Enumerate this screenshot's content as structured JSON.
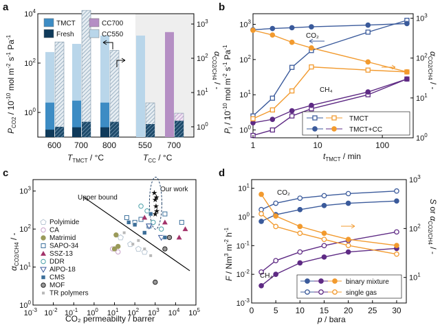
{
  "chart_data": [
    {
      "panel": "a",
      "type": "bar",
      "xlabel_left": "T_TMCT / °C",
      "xlabel_right": "T_CC / °C",
      "ylabel_left": "P_CO2 / 10^-10 mol m^-2 s^-1 Pa^-1",
      "ylabel_right": "α_CO2/CH4 / -",
      "y_left_scale": "log",
      "y_left_lim": [
        0.1,
        10000
      ],
      "y_left_ticks": [
        "10^0",
        "10^2",
        "10^4"
      ],
      "y_right_scale": "log",
      "y_right_lim": [
        0.5,
        2000
      ],
      "y_right_ticks": [
        "10^0",
        "10^1",
        "10^2",
        "10^3"
      ],
      "categories": [
        "600",
        "700",
        "800",
        "550",
        "700"
      ],
      "right_region_shaded": true,
      "legend": [
        "TMCT",
        "Fresh",
        "CC700",
        "CC550"
      ],
      "colors": {
        "TMCT": "#3d8cc4",
        "Fresh": "#0f3a5a",
        "CC700": "#b58fc4",
        "CC550": "#b9d6ea",
        "shaded": "#eeeeee"
      },
      "series": [
        {
          "name": "TMCT",
          "values": [
            2.5,
            3,
            2.5,
            null,
            null
          ]
        },
        {
          "name": "Fresh",
          "values": [
            0.2,
            0.25,
            0.25,
            null,
            null
          ]
        },
        {
          "name": "CC550",
          "values": [
            280,
            600,
            1300,
            1300,
            null
          ]
        },
        {
          "name": "CC700",
          "values": [
            null,
            null,
            null,
            null,
            1800
          ]
        }
      ],
      "selectivity_bars": [
        300,
        2500,
        170,
        5,
        2.5
      ],
      "fresh_selectivity_bars": [
        1.0,
        1.4,
        1.4,
        1.2,
        1.5
      ]
    },
    {
      "panel": "b",
      "type": "line",
      "xlabel": "t_TMCT / min",
      "ylabel_left": "P_i / 10^-10 mol m^-2 s^-1 Pa^-1",
      "ylabel_right": "α_CO2/CH4 / -",
      "x_scale": "log",
      "xlim": [
        1,
        300
      ],
      "x_ticks": [
        "1",
        "10",
        "100"
      ],
      "y_left_scale": "log",
      "y_left_lim": [
        0.6,
        2000
      ],
      "y_left_ticks": [
        "10^0",
        "10^1",
        "10^2",
        "10^3"
      ],
      "y_right_scale": "log",
      "y_right_lim": [
        1,
        1300
      ],
      "y_right_ticks": [
        "10^0",
        "10^1",
        "10^2",
        "10^3"
      ],
      "annotations": [
        "CO₂",
        "CH₄"
      ],
      "legend": [
        "TMCT",
        "TMCT+CC"
      ],
      "colors": {
        "blue": "#3a5a9b",
        "orange": "#f29a2e",
        "purple": "#5e2a84"
      },
      "series": [
        {
          "name": "TMCT",
          "gas": "CO2",
          "x": [
            1,
            2,
            4,
            8,
            60,
            240
          ],
          "y": [
            2.5,
            8,
            60,
            180,
            600,
            1300
          ]
        },
        {
          "name": "TMCT+CC",
          "gas": "CO2",
          "x": [
            1,
            2,
            4,
            8,
            60,
            240
          ],
          "y": [
            700,
            760,
            800,
            850,
            950,
            1050
          ]
        },
        {
          "name": "TMCT",
          "gas": "CH4",
          "x": [
            1,
            2,
            4,
            8,
            60,
            240
          ],
          "y": [
            0.7,
            1.0,
            2.5,
            4,
            10,
            28
          ]
        },
        {
          "name": "TMCT+CC",
          "gas": "CH4",
          "x": [
            1,
            2,
            4,
            8,
            60,
            240
          ],
          "y": [
            1.6,
            2.0,
            3.5,
            5,
            12,
            28
          ]
        },
        {
          "name": "TMCT",
          "quantity": "selectivity",
          "x": [
            1,
            2,
            4,
            8,
            60,
            240
          ],
          "y": [
            3,
            5,
            15,
            60,
            50,
            45
          ]
        },
        {
          "name": "TMCT+CC",
          "quantity": "selectivity",
          "x": [
            1,
            2,
            4,
            8,
            60,
            240
          ],
          "y": [
            500,
            380,
            250,
            180,
            80,
            45
          ]
        }
      ]
    },
    {
      "panel": "c",
      "type": "scatter",
      "xlabel": "CO₂ permeabilty / barrer",
      "ylabel": "α_CO2/CH4 / -",
      "x_scale": "log",
      "xlim": [
        0.001,
        100000
      ],
      "x_ticks": [
        "10^-3",
        "10^-2",
        "10^-1",
        "10^0",
        "10^1",
        "10^2",
        "10^3",
        "10^4",
        "10^5"
      ],
      "y_scale": "log",
      "ylim": [
        1,
        2000
      ],
      "y_ticks": [
        "10^0",
        "10^1",
        "10^2",
        "10^3"
      ],
      "annotations": [
        "Upper bound",
        "Our work"
      ],
      "upper_bound": {
        "x": [
          0.3,
          50000
        ],
        "y": [
          700,
          8
        ]
      },
      "legend": [
        "Polyimide",
        "CA",
        "Matrimid",
        "SAPO-34",
        "SSZ-13",
        "DDR",
        "AlPO-18",
        "CMS",
        "MOF",
        "TR polymers"
      ],
      "series": [
        {
          "name": "Our work",
          "x": [
            900,
            1000,
            1100,
            1200,
            1000,
            1150
          ],
          "y": [
            900,
            600,
            400,
            300,
            250,
            700
          ]
        },
        {
          "name": "Polyimide",
          "x": [
            20,
            60,
            150,
            300
          ],
          "y": [
            60,
            40,
            30,
            25
          ]
        },
        {
          "name": "CA",
          "x": [
            8,
            15
          ],
          "y": [
            30,
            25
          ]
        },
        {
          "name": "Matrimid",
          "x": [
            10,
            12,
            15
          ],
          "y": [
            30,
            70,
            35
          ]
        },
        {
          "name": "SAPO-34",
          "x": [
            40,
            100,
            200,
            500,
            3000,
            20000
          ],
          "y": [
            200,
            150,
            180,
            120,
            250,
            150
          ]
        },
        {
          "name": "SSZ-13",
          "x": [
            300,
            3000,
            15000,
            30000
          ],
          "y": [
            200,
            150,
            60,
            100
          ]
        },
        {
          "name": "DDR",
          "x": [
            200,
            400,
            800,
            2000
          ],
          "y": [
            400,
            300,
            150,
            100
          ]
        },
        {
          "name": "AlPO-18",
          "x": [
            500,
            2000
          ],
          "y": [
            120,
            60
          ]
        },
        {
          "name": "CMS",
          "x": [
            50,
            100,
            300,
            600,
            3000
          ],
          "y": [
            150,
            130,
            80,
            250,
            60
          ]
        },
        {
          "name": "MOF",
          "x": [
            1000,
            3000,
            5000
          ],
          "y": [
            4,
            30,
            60
          ]
        },
        {
          "name": "TR polymers",
          "x": [
            30,
            80,
            150,
            300,
            600
          ],
          "y": [
            80,
            40,
            50,
            30,
            20
          ]
        }
      ]
    },
    {
      "panel": "d",
      "type": "line",
      "xlabel": "p / bara",
      "ylabel_left": "F / Nm^3 m^-2 h^-1",
      "ylabel_right": "S or α_CO2/CH4 / -",
      "xlim": [
        0,
        32
      ],
      "x_ticks": [
        "0",
        "5",
        "10",
        "15",
        "20",
        "25",
        "30"
      ],
      "y_left_scale": "log",
      "y_left_lim": [
        0.001,
        20
      ],
      "y_left_ticks": [
        "10^-3",
        "10^-2",
        "10^-1",
        "10^0",
        "10^1"
      ],
      "y_right_scale": "log",
      "y_right_lim": [
        3,
        1000
      ],
      "y_right_ticks": [
        "10^1",
        "10^2",
        "10^3"
      ],
      "annotations": [
        "CO₂",
        "CH₄"
      ],
      "legend": [
        "binary mixture",
        "single gas"
      ],
      "series": [
        {
          "name": "binary mixture",
          "gas": "CO2",
          "x": [
            2,
            5,
            10,
            15,
            20,
            30
          ],
          "y": [
            0.7,
            1.2,
            1.8,
            2.5,
            3.0,
            3.6
          ]
        },
        {
          "name": "single gas",
          "gas": "CO2",
          "x": [
            2,
            5,
            10,
            15,
            20,
            30
          ],
          "y": [
            1.8,
            3.0,
            4.5,
            5.5,
            6.5,
            8.0
          ]
        },
        {
          "name": "binary mixture",
          "gas": "CH4",
          "x": [
            2,
            5,
            10,
            15,
            20,
            30
          ],
          "y": [
            0.004,
            0.01,
            0.025,
            0.04,
            0.06,
            0.08
          ]
        },
        {
          "name": "single gas",
          "gas": "CH4",
          "x": [
            2,
            5,
            10,
            15,
            20,
            30
          ],
          "y": [
            0.012,
            0.03,
            0.06,
            0.1,
            0.15,
            0.3
          ]
        },
        {
          "name": "binary mixture",
          "quantity": "selectivity",
          "x": [
            2,
            5,
            10,
            15,
            20,
            30
          ],
          "y": [
            500,
            180,
            110,
            80,
            60,
            45
          ]
        },
        {
          "name": "single gas",
          "quantity": "selectivity",
          "x": [
            2,
            5,
            10,
            15,
            20,
            30
          ],
          "y": [
            200,
            110,
            80,
            60,
            45,
            30
          ]
        }
      ]
    }
  ]
}
